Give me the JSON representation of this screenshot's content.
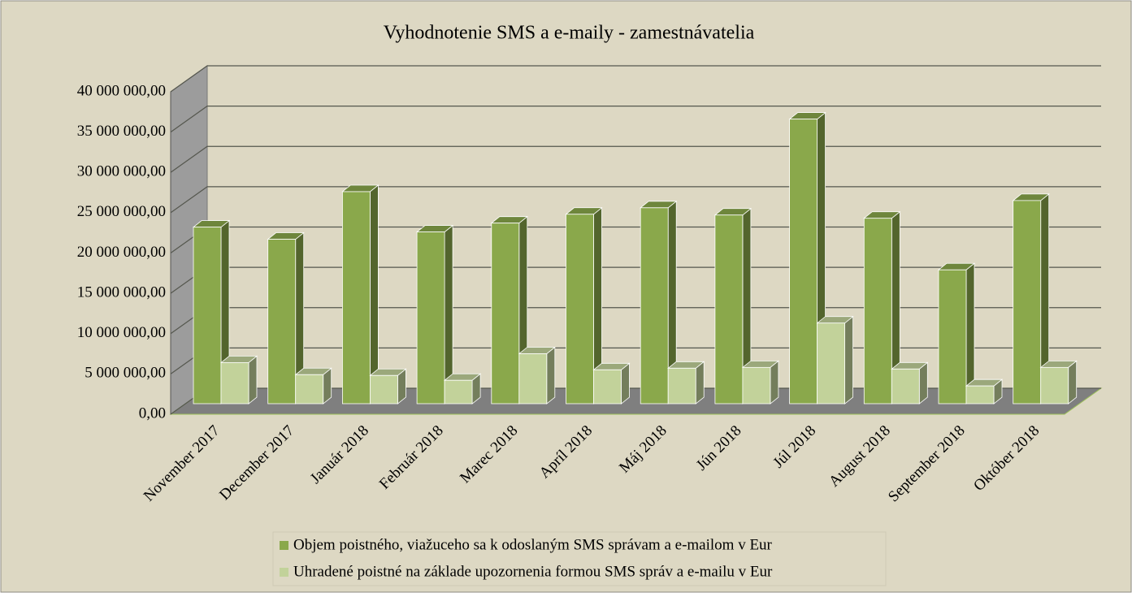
{
  "chart_data": {
    "type": "bar3d",
    "title": "Vyhodnotenie SMS a e-maily - zamestnávatelia",
    "categories": [
      "November 2017",
      "December 2017",
      "Január 2018",
      "Február 2018",
      "Marec 2018",
      "Apríl 2018",
      "Máj 2018",
      "Jún 2018",
      "Júl 2018",
      "August 2018",
      "September 2018",
      "Október 2018"
    ],
    "series": [
      {
        "name": "Objem poistného, viažuceho sa k odoslaným SMS správam a e-mailom v Eur",
        "color": "#8aa84b",
        "values": [
          21900000,
          20400000,
          26300000,
          21300000,
          22400000,
          23500000,
          24300000,
          23400000,
          35300000,
          23000000,
          16600000,
          25200000
        ]
      },
      {
        "name": "Uhradené poistné na základe upozornenia formou SMS správ a e-mailu v Eur",
        "color": "#c2d29a",
        "values": [
          5100000,
          3600000,
          3500000,
          2900000,
          6200000,
          4200000,
          4400000,
          4500000,
          10000000,
          4300000,
          2200000,
          4500000
        ]
      }
    ],
    "ylim": [
      0,
      40000000
    ],
    "yticks": [
      {
        "value": 0,
        "label": "0,00"
      },
      {
        "value": 5000000,
        "label": "5 000 000,00"
      },
      {
        "value": 10000000,
        "label": "10 000 000,00"
      },
      {
        "value": 15000000,
        "label": "15 000 000,00"
      },
      {
        "value": 20000000,
        "label": "20 000 000,00"
      },
      {
        "value": 25000000,
        "label": "25 000 000,00"
      },
      {
        "value": 30000000,
        "label": "30 000 000,00"
      },
      {
        "value": 35000000,
        "label": "35 000 000,00"
      },
      {
        "value": 40000000,
        "label": "40 000 000,00"
      }
    ],
    "grid": true
  }
}
